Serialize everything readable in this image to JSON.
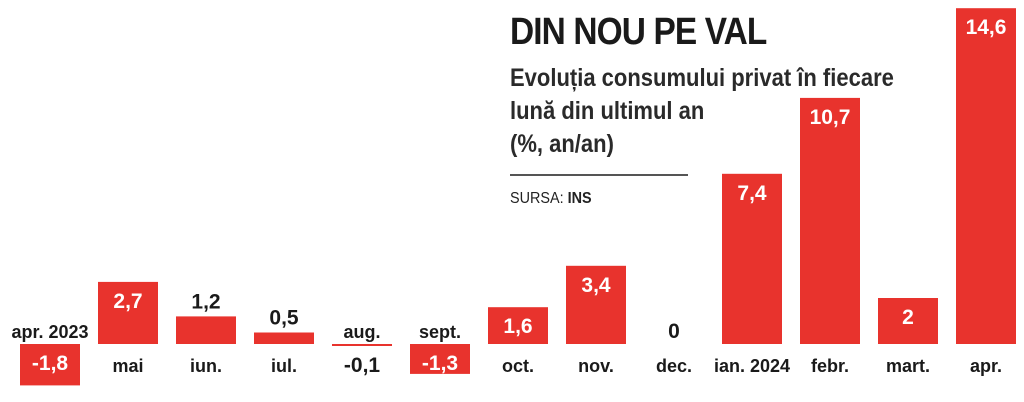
{
  "header": {
    "title": "DIN NOU PE VAL",
    "subtitle_line1": "Evoluția consumului privat în fiecare",
    "subtitle_line2": "lună din ultimul an",
    "subtitle_line3": "(%, an/an)",
    "source_label": "SURSA:",
    "source_value": "INS"
  },
  "colors": {
    "bar": "#e8332d",
    "text": "#1a1a1a",
    "bar_label": "#ffffff"
  },
  "chart_data": {
    "type": "bar",
    "title": "DIN NOU PE VAL",
    "categories": [
      "apr. 2023",
      "mai",
      "iun.",
      "iul.",
      "aug.",
      "sept.",
      "oct.",
      "nov.",
      "dec.",
      "ian. 2024",
      "febr.",
      "mart.",
      "apr."
    ],
    "values": [
      -1.8,
      2.7,
      1.2,
      0.5,
      -0.1,
      -1.3,
      1.6,
      3.4,
      0,
      7.4,
      10.7,
      2,
      14.6
    ],
    "value_labels": [
      "-1,8",
      "2,7",
      "1,2",
      "0,5",
      "-0,1",
      "-1,3",
      "1,6",
      "3,4",
      "0",
      "7,4",
      "10,7",
      "2",
      "14,6"
    ],
    "ylabel": "%, an/an",
    "grid": false
  }
}
